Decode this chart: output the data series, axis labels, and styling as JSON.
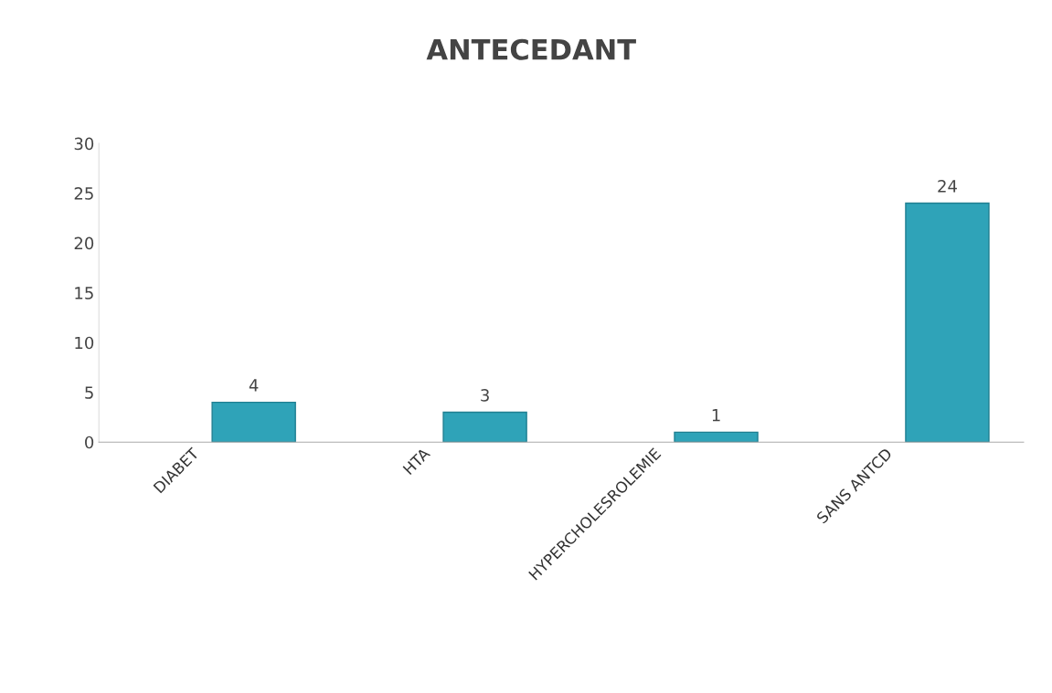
{
  "chart_data": {
    "type": "bar",
    "title": "ANTECEDANT",
    "categories": [
      "DIABET",
      "HTA",
      "HYPERCHOLESROLEMIE",
      "SANS ANTCD"
    ],
    "values": [
      4,
      3,
      1,
      24
    ],
    "color": "#2fa3b8",
    "ylim": [
      0,
      30
    ],
    "yticks": [
      0,
      5,
      10,
      15,
      20,
      25,
      30
    ],
    "grid": false,
    "data_labels": true
  }
}
